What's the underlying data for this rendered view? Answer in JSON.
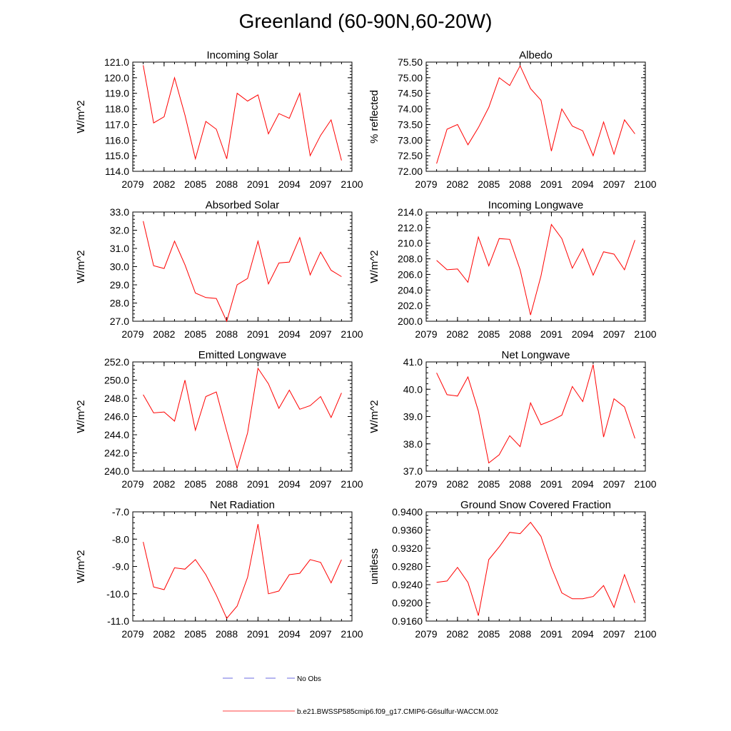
{
  "title": "Greenland (60-90N,60-20W)",
  "colors": {
    "series": "#ff0000",
    "obs": "#3b3bd6",
    "axis": "#000000"
  },
  "legend": {
    "entries": [
      {
        "label": "No Obs",
        "style": "dashed",
        "color": "#3b3bd6"
      },
      {
        "label": "b.e21.BWSSP585cmip6.f09_g17.CMIP6-G6sulfur-WACCM.002",
        "style": "solid",
        "color": "#ff0000"
      }
    ]
  },
  "chart_data": [
    {
      "type": "line",
      "title": "Incoming Solar",
      "xlabel": "",
      "ylabel": "W/m^2",
      "xlim": [
        2079,
        2100
      ],
      "ylim": [
        114.0,
        121.0
      ],
      "xticks": [
        "2079",
        "2082",
        "2085",
        "2088",
        "2091",
        "2094",
        "2097",
        "2100"
      ],
      "yticks": [
        "114.0",
        "115.0",
        "116.0",
        "117.0",
        "118.0",
        "119.0",
        "120.0",
        "121.0"
      ],
      "x": [
        2080,
        2081,
        2082,
        2083,
        2084,
        2085,
        2086,
        2087,
        2088,
        2089,
        2090,
        2091,
        2092,
        2093,
        2094,
        2095,
        2096,
        2097,
        2098,
        2099
      ],
      "series": [
        {
          "values": [
            120.8,
            117.1,
            117.5,
            120.0,
            117.6,
            114.8,
            117.2,
            116.7,
            114.8,
            119.0,
            118.5,
            118.9,
            116.4,
            117.7,
            117.4,
            119.0,
            115.0,
            116.3,
            117.3,
            114.7
          ]
        }
      ]
    },
    {
      "type": "line",
      "title": "Albedo",
      "xlabel": "",
      "ylabel": "% reflected",
      "xlim": [
        2079,
        2100
      ],
      "ylim": [
        72.0,
        75.5
      ],
      "xticks": [
        "2079",
        "2082",
        "2085",
        "2088",
        "2091",
        "2094",
        "2097",
        "2100"
      ],
      "yticks": [
        "72.00",
        "72.50",
        "73.00",
        "73.50",
        "74.00",
        "74.50",
        "75.00",
        "75.50"
      ],
      "x": [
        2080,
        2081,
        2082,
        2083,
        2084,
        2085,
        2086,
        2087,
        2088,
        2089,
        2090,
        2091,
        2092,
        2093,
        2094,
        2095,
        2096,
        2097,
        2098,
        2099
      ],
      "series": [
        {
          "values": [
            72.25,
            73.35,
            73.5,
            72.85,
            73.4,
            74.05,
            75.0,
            74.75,
            75.38,
            74.65,
            74.28,
            72.65,
            74.0,
            73.45,
            73.3,
            72.5,
            73.58,
            72.55,
            73.65,
            73.2
          ]
        }
      ]
    },
    {
      "type": "line",
      "title": "Absorbed Solar",
      "xlabel": "",
      "ylabel": "W/m^2",
      "xlim": [
        2079,
        2100
      ],
      "ylim": [
        27.0,
        33.0
      ],
      "xticks": [
        "2079",
        "2082",
        "2085",
        "2088",
        "2091",
        "2094",
        "2097",
        "2100"
      ],
      "yticks": [
        "27.0",
        "28.0",
        "29.0",
        "30.0",
        "31.0",
        "32.0",
        "33.0"
      ],
      "x": [
        2080,
        2081,
        2082,
        2083,
        2084,
        2085,
        2086,
        2087,
        2088,
        2089,
        2090,
        2091,
        2092,
        2093,
        2094,
        2095,
        2096,
        2097,
        2098,
        2099
      ],
      "series": [
        {
          "values": [
            32.5,
            30.05,
            29.9,
            31.4,
            30.1,
            28.55,
            28.3,
            28.25,
            27.0,
            29.0,
            29.35,
            31.4,
            29.05,
            30.2,
            30.25,
            31.6,
            29.55,
            30.8,
            29.8,
            29.45
          ]
        }
      ]
    },
    {
      "type": "line",
      "title": "Incoming Longwave",
      "xlabel": "",
      "ylabel": "W/m^2",
      "xlim": [
        2079,
        2100
      ],
      "ylim": [
        200.0,
        214.0
      ],
      "xticks": [
        "2079",
        "2082",
        "2085",
        "2088",
        "2091",
        "2094",
        "2097",
        "2100"
      ],
      "yticks": [
        "200.0",
        "202.0",
        "204.0",
        "206.0",
        "208.0",
        "210.0",
        "212.0",
        "214.0"
      ],
      "x": [
        2080,
        2081,
        2082,
        2083,
        2084,
        2085,
        2086,
        2087,
        2088,
        2089,
        2090,
        2091,
        2092,
        2093,
        2094,
        2095,
        2096,
        2097,
        2098,
        2099
      ],
      "series": [
        {
          "values": [
            207.8,
            206.6,
            206.7,
            205.0,
            210.8,
            207.1,
            210.6,
            210.5,
            206.6,
            200.8,
            205.8,
            212.4,
            210.6,
            206.8,
            209.3,
            205.9,
            208.9,
            208.6,
            206.6,
            210.4
          ]
        }
      ]
    },
    {
      "type": "line",
      "title": "Emitted Longwave",
      "xlabel": "",
      "ylabel": "W/m^2",
      "xlim": [
        2079,
        2100
      ],
      "ylim": [
        240.0,
        252.0
      ],
      "xticks": [
        "2079",
        "2082",
        "2085",
        "2088",
        "2091",
        "2094",
        "2097",
        "2100"
      ],
      "yticks": [
        "240.0",
        "242.0",
        "244.0",
        "246.0",
        "248.0",
        "250.0",
        "252.0"
      ],
      "x": [
        2080,
        2081,
        2082,
        2083,
        2084,
        2085,
        2086,
        2087,
        2088,
        2089,
        2090,
        2091,
        2092,
        2093,
        2094,
        2095,
        2096,
        2097,
        2098,
        2099
      ],
      "series": [
        {
          "values": [
            248.4,
            246.4,
            246.5,
            245.5,
            250.0,
            244.5,
            248.2,
            248.7,
            244.4,
            240.3,
            244.2,
            251.3,
            249.6,
            246.9,
            248.9,
            246.8,
            247.2,
            248.2,
            245.9,
            248.6
          ]
        }
      ]
    },
    {
      "type": "line",
      "title": "Net Longwave",
      "xlabel": "",
      "ylabel": "W/m^2",
      "xlim": [
        2079,
        2100
      ],
      "ylim": [
        37.0,
        41.0
      ],
      "xticks": [
        "2079",
        "2082",
        "2085",
        "2088",
        "2091",
        "2094",
        "2097",
        "2100"
      ],
      "yticks": [
        "37.0",
        "38.0",
        "39.0",
        "40.0",
        "41.0"
      ],
      "x": [
        2080,
        2081,
        2082,
        2083,
        2084,
        2085,
        2086,
        2087,
        2088,
        2089,
        2090,
        2091,
        2092,
        2093,
        2094,
        2095,
        2096,
        2097,
        2098,
        2099
      ],
      "series": [
        {
          "values": [
            40.6,
            39.8,
            39.75,
            40.45,
            39.2,
            37.3,
            37.6,
            38.3,
            37.9,
            39.5,
            38.7,
            38.85,
            39.05,
            40.1,
            39.55,
            40.9,
            38.25,
            39.65,
            39.35,
            38.2
          ]
        }
      ]
    },
    {
      "type": "line",
      "title": "Net Radiation",
      "xlabel": "",
      "ylabel": "W/m^2",
      "xlim": [
        2079,
        2100
      ],
      "ylim": [
        -11.0,
        -7.0
      ],
      "xticks": [
        "2079",
        "2082",
        "2085",
        "2088",
        "2091",
        "2094",
        "2097",
        "2100"
      ],
      "yticks": [
        "-11.0",
        "-10.0",
        "-9.0",
        "-8.0",
        "-7.0"
      ],
      "x": [
        2080,
        2081,
        2082,
        2083,
        2084,
        2085,
        2086,
        2087,
        2088,
        2089,
        2090,
        2091,
        2092,
        2093,
        2094,
        2095,
        2096,
        2097,
        2098,
        2099
      ],
      "series": [
        {
          "values": [
            -8.1,
            -9.75,
            -9.85,
            -9.05,
            -9.1,
            -8.75,
            -9.3,
            -10.05,
            -10.9,
            -10.45,
            -9.4,
            -7.45,
            -10.0,
            -9.9,
            -9.3,
            -9.25,
            -8.75,
            -8.85,
            -9.6,
            -8.75
          ]
        }
      ]
    },
    {
      "type": "line",
      "title": "Ground Snow Covered Fraction",
      "xlabel": "",
      "ylabel": "unitless",
      "xlim": [
        2079,
        2100
      ],
      "ylim": [
        0.916,
        0.94
      ],
      "xticks": [
        "2079",
        "2082",
        "2085",
        "2088",
        "2091",
        "2094",
        "2097",
        "2100"
      ],
      "yticks": [
        "0.9160",
        "0.9200",
        "0.9240",
        "0.9280",
        "0.9320",
        "0.9360",
        "0.9400"
      ],
      "x": [
        2080,
        2081,
        2082,
        2083,
        2084,
        2085,
        2086,
        2087,
        2088,
        2089,
        2090,
        2091,
        2092,
        2093,
        2094,
        2095,
        2096,
        2097,
        2098,
        2099
      ],
      "series": [
        {
          "values": [
            0.9245,
            0.9248,
            0.9278,
            0.9245,
            0.9172,
            0.9295,
            0.9323,
            0.9355,
            0.9352,
            0.9377,
            0.9346,
            0.9278,
            0.9222,
            0.9209,
            0.9209,
            0.9214,
            0.9238,
            0.919,
            0.9262,
            0.92
          ]
        }
      ]
    }
  ]
}
